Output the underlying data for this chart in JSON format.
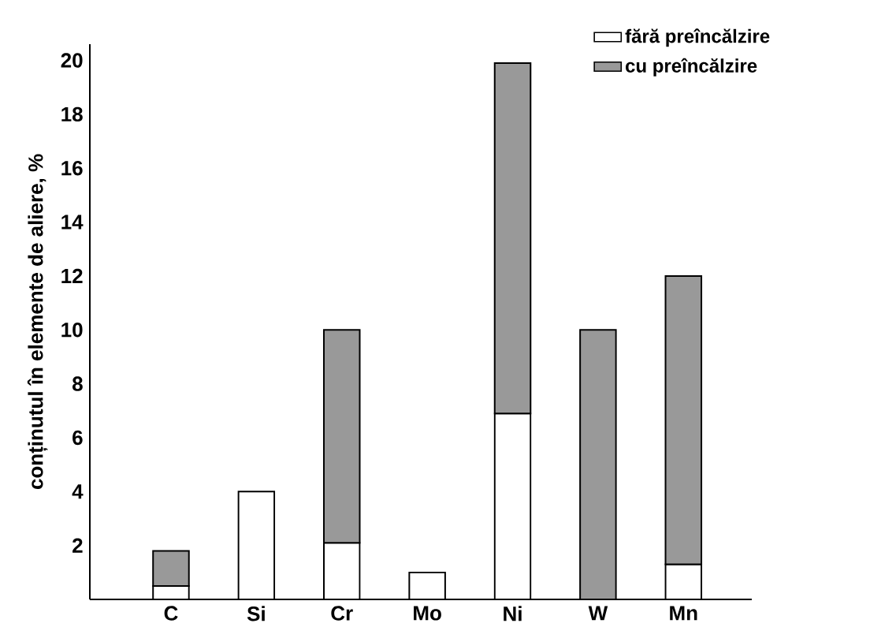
{
  "chart_data": {
    "type": "bar",
    "stacked": true,
    "ylabel": "conținutul în elemente de aliere, %",
    "categories": [
      "C",
      "Si",
      "Cr",
      "Mo",
      "Ni",
      "W",
      "Mn"
    ],
    "series": [
      {
        "name": "fără preîncălzire",
        "color": "#ffffff",
        "values": [
          0.5,
          4,
          2.1,
          1,
          6.9,
          null,
          1.3
        ]
      },
      {
        "name": "cu preîncălzire",
        "color": "#999999",
        "values": [
          1.3,
          null,
          7.9,
          null,
          13,
          10,
          10.7
        ]
      }
    ],
    "ylim": [
      0,
      20.6
    ],
    "yticks": [
      2,
      4,
      6,
      8,
      10,
      12,
      14,
      16,
      18,
      20
    ],
    "grid": false,
    "legend": "top right"
  }
}
